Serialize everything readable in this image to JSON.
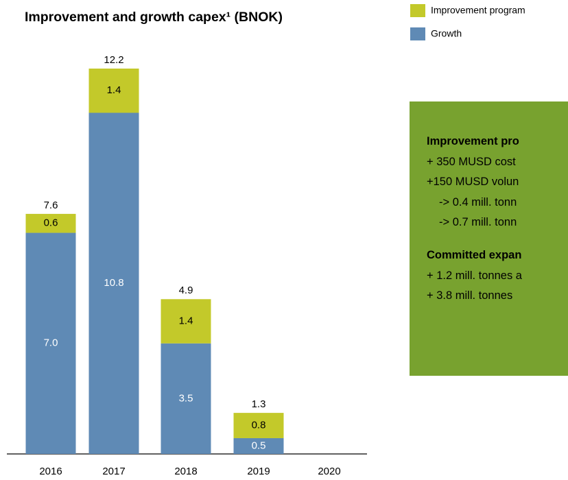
{
  "chart_data": {
    "type": "stacked_bar",
    "title": "Improvement and growth capex¹ (BNOK)",
    "categories": [
      "2016",
      "2017",
      "2018",
      "2019",
      "2020"
    ],
    "series": [
      {
        "name": "Growth",
        "color": "#5f8ab5",
        "values": [
          7.0,
          10.8,
          3.5,
          0.5,
          null
        ],
        "value_labels": [
          "7.0",
          "10.8",
          "3.5",
          "0.5",
          null
        ]
      },
      {
        "name": "Improvement program",
        "color": "#c3c92a",
        "values": [
          0.6,
          1.4,
          1.4,
          0.8,
          null
        ]
      }
    ],
    "totals": [
      7.6,
      12.2,
      4.9,
      1.3,
      null
    ]
  },
  "text_box": {
    "sections": [
      {
        "heading": "Improvement pro",
        "lines": [
          "+ 350 MUSD cost",
          "+150 MUSD volun",
          "-> 0.4 mill. tonn",
          "-> 0.7 mill. tonn"
        ]
      },
      {
        "heading": "Committed expan",
        "lines": [
          "+ 1.2 mill. tonnes a",
          "+ 3.8 mill. tonnes"
        ]
      }
    ]
  }
}
